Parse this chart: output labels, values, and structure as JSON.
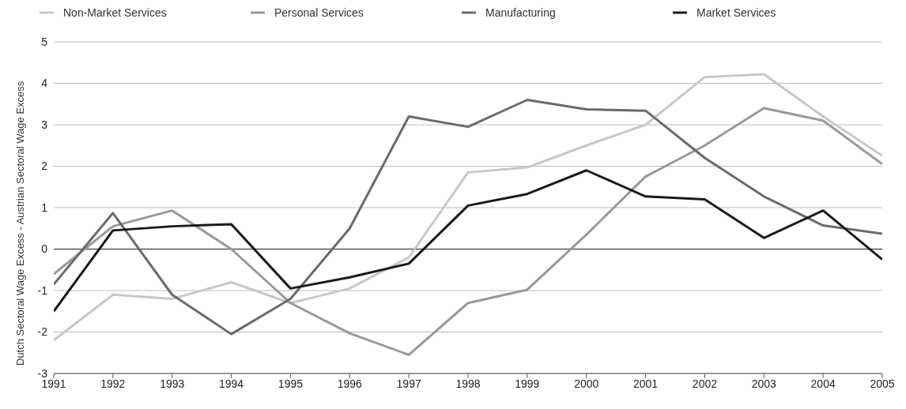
{
  "chart_data": {
    "type": "line",
    "ylabel": "Dutch Sectoral Wage Excess - Austrian Sectoral Wage Excess",
    "x": [
      1991,
      1992,
      1993,
      1994,
      1995,
      1996,
      1997,
      1998,
      1999,
      2000,
      2001,
      2002,
      2003,
      2004,
      2005
    ],
    "xlim": [
      1991,
      2005
    ],
    "xticks": [
      1991,
      1992,
      1993,
      1994,
      1995,
      1996,
      1997,
      1998,
      1999,
      2000,
      2001,
      2002,
      2003,
      2004,
      2005
    ],
    "ylim": [
      -3,
      5
    ],
    "yticks": [
      -3,
      -2,
      -1,
      0,
      1,
      2,
      3,
      4,
      5
    ],
    "grid": "y",
    "legend": "top",
    "marker": "none",
    "line_style": "solid",
    "ref_lines": [
      {
        "axis": "y",
        "value": 0,
        "color": "#555555"
      }
    ],
    "series": [
      {
        "name": "Non-Market Services",
        "color": "#c8c8c8",
        "values": [
          -2.2,
          -1.1,
          -1.2,
          -0.8,
          -1.3,
          -0.95,
          -0.2,
          1.85,
          1.97,
          2.5,
          3.0,
          4.15,
          4.22,
          3.2,
          2.25
        ]
      },
      {
        "name": "Personal Services",
        "color": "#999999",
        "values": [
          -0.6,
          0.55,
          0.93,
          0.0,
          -1.3,
          -2.03,
          -2.55,
          -1.3,
          -0.98,
          0.35,
          1.75,
          2.5,
          3.4,
          3.1,
          2.05
        ]
      },
      {
        "name": "Manufacturing",
        "color": "#6b6b6b",
        "values": [
          -0.85,
          0.87,
          -1.1,
          -2.05,
          -1.2,
          0.5,
          3.2,
          2.95,
          3.6,
          3.37,
          3.34,
          2.2,
          1.27,
          0.57,
          0.37
        ]
      },
      {
        "name": "Market Services",
        "color": "#1a1a1a",
        "values": [
          -1.5,
          0.45,
          0.55,
          0.6,
          -0.95,
          -0.68,
          -0.35,
          1.05,
          1.33,
          1.9,
          1.27,
          1.2,
          0.27,
          0.93,
          -0.25
        ]
      }
    ]
  }
}
